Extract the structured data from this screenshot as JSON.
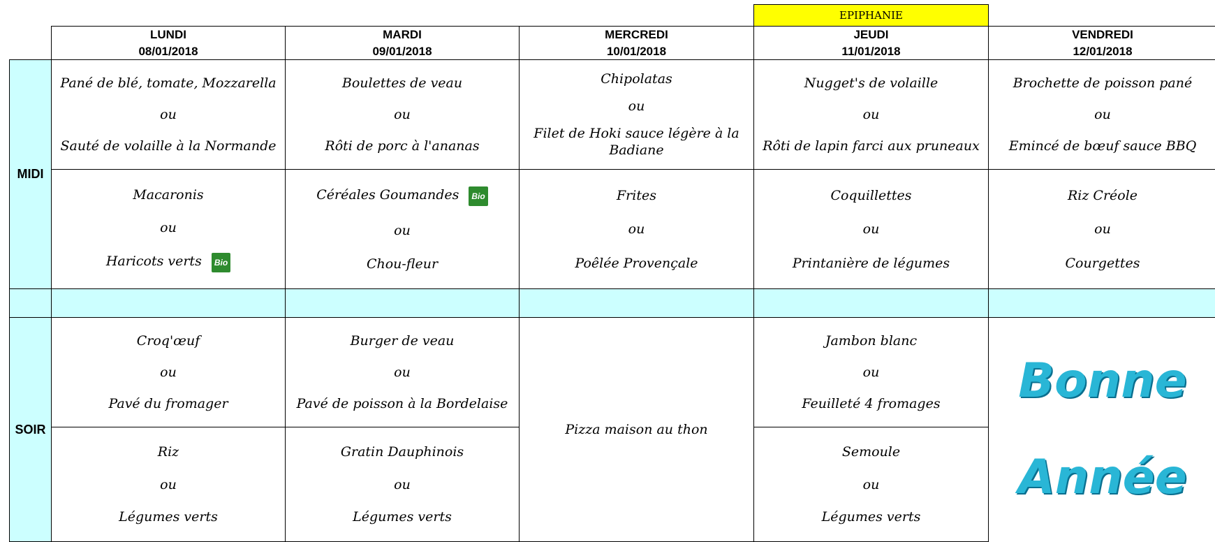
{
  "days": [
    {
      "name": "LUNDI",
      "date": "08/01/2018"
    },
    {
      "name": "MARDI",
      "date": "09/01/2018"
    },
    {
      "name": "MERCREDI",
      "date": "10/01/2018"
    },
    {
      "name": "JEUDI",
      "date": "11/01/2018",
      "banner": "EPIPHANIE"
    },
    {
      "name": "VENDREDI",
      "date": "12/01/2018"
    }
  ],
  "midi": {
    "label": "MIDI",
    "cells": [
      {
        "main": [
          "Pané de blé, tomate, Mozzarella",
          "ou",
          "Sauté de volaille à la Normande"
        ],
        "side": [
          "Macaronis",
          "ou",
          {
            "text": "Haricots verts",
            "badge": "Bio"
          }
        ]
      },
      {
        "main": [
          "Boulettes de veau",
          "ou",
          "Rôti de porc à l'ananas"
        ],
        "side": [
          {
            "text": "Céréales Goumandes",
            "badge": "Bio"
          },
          "ou",
          "Chou-fleur"
        ]
      },
      {
        "main": [
          "Chipolatas",
          "ou",
          "Filet de Hoki sauce légère à la Badiane"
        ],
        "side": [
          "Frites",
          "ou",
          "Poêlée Provençale"
        ]
      },
      {
        "main": [
          "Nugget's de volaille",
          "ou",
          "Rôti de lapin farci aux pruneaux"
        ],
        "side": [
          "Coquillettes",
          "ou",
          "Printanière de légumes"
        ]
      },
      {
        "main": [
          "Brochette de poisson pané",
          "ou",
          "Emincé de bœuf sauce BBQ"
        ],
        "side": [
          "Riz Créole",
          "ou",
          "Courgettes"
        ]
      }
    ]
  },
  "soir": {
    "label": "SOIR",
    "cells": [
      {
        "main": [
          "Croq'œuf",
          "ou",
          "Pavé du fromager"
        ],
        "side": [
          "Riz",
          "ou",
          "Légumes verts"
        ]
      },
      {
        "main": [
          "Burger de veau",
          "ou",
          "Pavé de poisson à la Bordelaise"
        ],
        "side": [
          "Gratin Dauphinois",
          "ou",
          "Légumes verts"
        ]
      },
      {
        "merged": [
          "Pizza maison au thon"
        ]
      },
      {
        "main": [
          "Jambon blanc",
          "ou",
          "Feuilleté 4 fromages"
        ],
        "side": [
          "Semoule",
          "ou",
          "Légumes verts"
        ]
      },
      {
        "greeting": [
          "Bonne",
          "Année"
        ]
      }
    ]
  }
}
